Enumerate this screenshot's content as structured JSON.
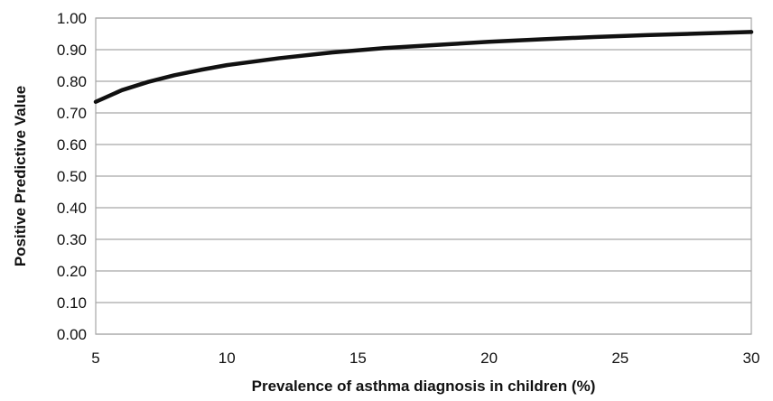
{
  "chart_data": {
    "type": "line",
    "xlabel": "Prevalence of asthma diagnosis in children (%)",
    "ylabel": "Positive Predictive Value",
    "xlim": [
      5,
      30
    ],
    "ylim": [
      0,
      1
    ],
    "x_ticks": [
      "5",
      "10",
      "15",
      "20",
      "25",
      "30"
    ],
    "y_ticks": [
      "0.00",
      "0.10",
      "0.20",
      "0.30",
      "0.40",
      "0.50",
      "0.60",
      "0.70",
      "0.80",
      "0.90",
      "1.00"
    ],
    "grid": true,
    "legend": "none",
    "series": [
      {
        "color": "#111111",
        "x": [
          5,
          6,
          7,
          8,
          9,
          10,
          12,
          14,
          16,
          18,
          20,
          22,
          24,
          26,
          28,
          30
        ],
        "y": [
          0.735,
          0.772,
          0.798,
          0.819,
          0.836,
          0.851,
          0.873,
          0.891,
          0.905,
          0.915,
          0.925,
          0.933,
          0.94,
          0.946,
          0.951,
          0.956
        ]
      }
    ]
  }
}
